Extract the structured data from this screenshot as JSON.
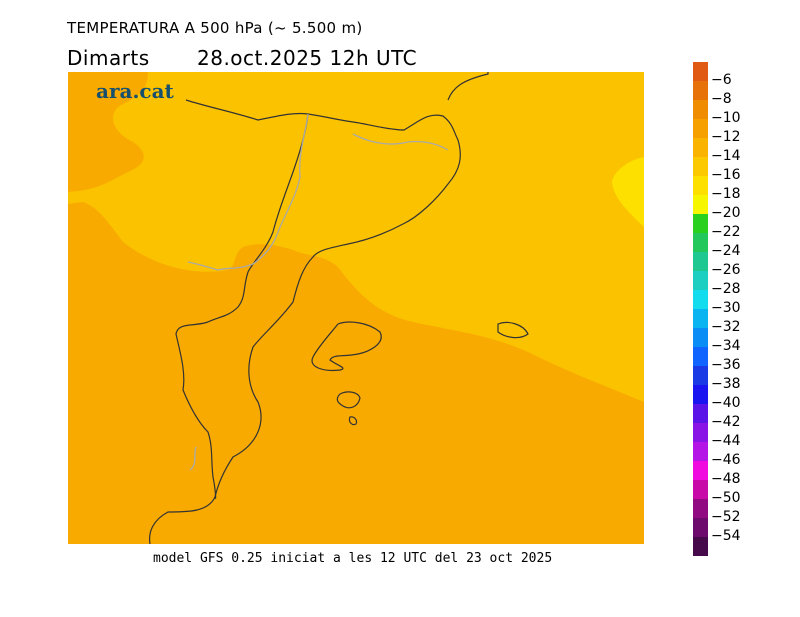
{
  "header": {
    "title": "TEMPERATURA A 500 hPa (~ 5.500 m)",
    "day": "Dimarts",
    "datetime": "28.oct.2025 12h UTC"
  },
  "logo": "ara.cat",
  "footer": "model GFS 0.25 iniciat a les 12 UTC del 23 oct 2025",
  "legend": {
    "labels": [
      "-6",
      "-8",
      "-10",
      "-12",
      "-14",
      "-16",
      "-18",
      "-20",
      "-22",
      "-24",
      "-26",
      "-28",
      "-30",
      "-32",
      "-34",
      "-36",
      "-38",
      "-40",
      "-42",
      "-44",
      "-46",
      "-48",
      "-50",
      "-52",
      "-54"
    ],
    "colors": [
      "#e05a14",
      "#e8720a",
      "#f08c00",
      "#f6a000",
      "#fab400",
      "#fcc800",
      "#fde000",
      "#f6f600",
      "#2ad01e",
      "#22c85c",
      "#1ec890",
      "#1ccfc0",
      "#12dcee",
      "#0ab4f0",
      "#0a8ef6",
      "#1064ff",
      "#1a3ae6",
      "#1a14f0",
      "#5a14e8",
      "#8a14e6",
      "#b414e6",
      "#f00ae0",
      "#c80aa8",
      "#920a82",
      "#6e0a6e",
      "#460a4a"
    ]
  },
  "map": {
    "fill_colors": {
      "minus12": "#f8aa00",
      "minus14": "#fbc200",
      "minus16": "#fde000"
    }
  }
}
